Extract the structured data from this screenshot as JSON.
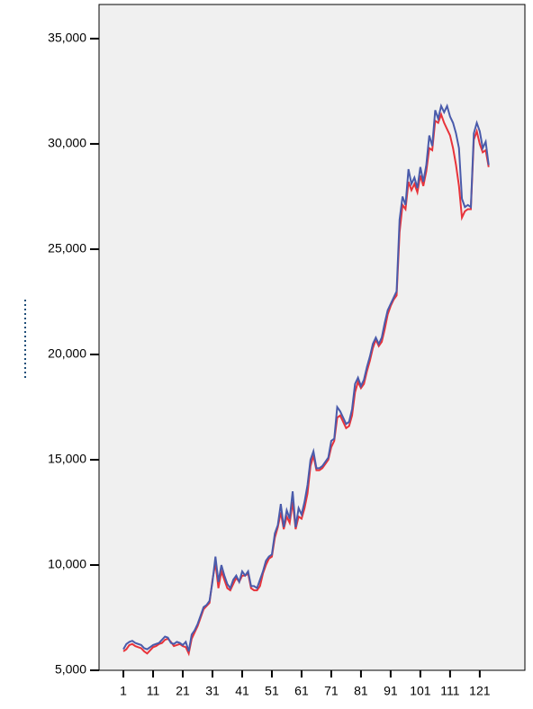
{
  "chart_data": {
    "type": "line",
    "x": [
      1,
      2,
      3,
      4,
      5,
      6,
      7,
      8,
      9,
      10,
      11,
      12,
      13,
      14,
      15,
      16,
      17,
      18,
      19,
      20,
      21,
      22,
      23,
      24,
      25,
      26,
      27,
      28,
      29,
      30,
      31,
      32,
      33,
      34,
      35,
      36,
      37,
      38,
      39,
      40,
      41,
      42,
      43,
      44,
      45,
      46,
      47,
      48,
      49,
      50,
      51,
      52,
      53,
      54,
      55,
      56,
      57,
      58,
      59,
      60,
      61,
      62,
      63,
      64,
      65,
      66,
      67,
      68,
      69,
      70,
      71,
      72,
      73,
      74,
      75,
      76,
      77,
      78,
      79,
      80,
      81,
      82,
      83,
      84,
      85,
      86,
      87,
      88,
      89,
      90,
      91,
      92,
      93,
      94,
      95,
      96,
      97,
      98,
      99,
      100,
      101,
      102,
      103,
      104,
      105,
      106,
      107,
      108,
      109,
      110,
      111,
      112,
      113,
      114,
      115,
      116,
      117,
      118,
      119,
      120,
      121,
      122,
      123,
      124
    ],
    "series": [
      {
        "color": "#e8333a",
        "values": [
          5900,
          6000,
          6200,
          6250,
          6150,
          6100,
          6050,
          5900,
          5800,
          5950,
          6100,
          6150,
          6250,
          6300,
          6450,
          6500,
          6350,
          6150,
          6200,
          6250,
          6150,
          6100,
          5800,
          6500,
          6800,
          7100,
          7500,
          7900,
          8050,
          8200,
          9300,
          10100,
          8900,
          9700,
          9300,
          8900,
          8800,
          9100,
          9400,
          9200,
          9500,
          9500,
          9600,
          8900,
          8800,
          8800,
          9000,
          9600,
          10000,
          10300,
          10400,
          11300,
          11800,
          12500,
          11700,
          12300,
          12000,
          13000,
          11700,
          12300,
          12200,
          12700,
          13400,
          14700,
          15200,
          14500,
          14500,
          14600,
          14800,
          15000,
          15600,
          15900,
          17000,
          17100,
          16800,
          16500,
          16600,
          17100,
          18200,
          18700,
          18400,
          18600,
          19200,
          19700,
          20300,
          20700,
          20400,
          20600,
          21200,
          21900,
          22300,
          22600,
          22800,
          25800,
          27100,
          26900,
          28200,
          27800,
          28100,
          27700,
          28500,
          28000,
          28700,
          29800,
          29700,
          31100,
          31000,
          31400,
          31000,
          30700,
          30400,
          29800,
          29000,
          28000,
          26500,
          26800,
          26900,
          26900,
          30200,
          30600,
          30000,
          29600,
          29700,
          28900
        ]
      },
      {
        "color": "#4a5bab",
        "values": [
          6000,
          6250,
          6350,
          6400,
          6300,
          6250,
          6200,
          6050,
          6000,
          6100,
          6200,
          6250,
          6300,
          6450,
          6600,
          6550,
          6300,
          6250,
          6350,
          6300,
          6200,
          6350,
          5900,
          6700,
          6900,
          7200,
          7600,
          8000,
          8100,
          8300,
          9200,
          10400,
          9200,
          10000,
          9500,
          9100,
          8900,
          9300,
          9500,
          9200,
          9700,
          9500,
          9700,
          9000,
          9000,
          8900,
          9300,
          9700,
          10200,
          10400,
          10500,
          11500,
          11900,
          12900,
          11800,
          12600,
          12200,
          13500,
          11800,
          12700,
          12400,
          13000,
          13800,
          15000,
          15400,
          14600,
          14600,
          14700,
          14900,
          15100,
          15900,
          16000,
          17500,
          17300,
          17000,
          16700,
          16800,
          17400,
          18600,
          18900,
          18500,
          18800,
          19400,
          19900,
          20500,
          20800,
          20500,
          20800,
          21500,
          22100,
          22400,
          22700,
          23000,
          26400,
          27500,
          27100,
          28800,
          28100,
          28400,
          27900,
          28900,
          28200,
          29000,
          30400,
          29900,
          31600,
          31200,
          31800,
          31500,
          31800,
          31300,
          31000,
          30500,
          29800,
          27400,
          27000,
          27100,
          27000,
          30500,
          31000,
          30600,
          29800,
          30100,
          29000
        ]
      }
    ],
    "xlim": [
      -7.2,
      136.2
    ],
    "xticks": [
      1,
      11,
      21,
      31,
      41,
      51,
      61,
      71,
      81,
      91,
      101,
      111,
      121
    ],
    "ylim": [
      5000,
      36620
    ],
    "yticks": [
      {
        "value": 5000,
        "label": "5,000"
      },
      {
        "value": 10000,
        "label": "10,000"
      },
      {
        "value": 15000,
        "label": "15,000"
      },
      {
        "value": 20000,
        "label": "20,000"
      },
      {
        "value": 25000,
        "label": "25,000"
      },
      {
        "value": 30000,
        "label": "30,000"
      },
      {
        "value": 35000,
        "label": "35,000"
      }
    ]
  }
}
